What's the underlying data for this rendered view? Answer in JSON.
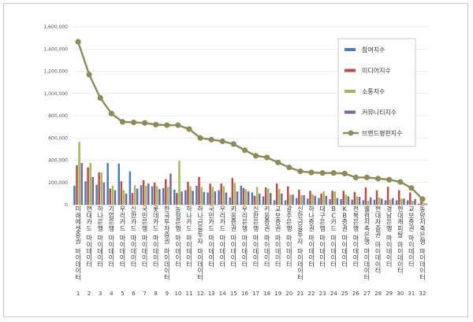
{
  "chart_data": {
    "type": "bar",
    "yticks": [
      "0",
      "200,000",
      "400,000",
      "600,000",
      "800,000",
      "1,000,000",
      "1,200,000",
      "1,400,000",
      "1,600,000"
    ],
    "ylim": [
      0,
      1600000
    ],
    "grid": true,
    "legend_position": "right",
    "categories": [
      "미래에셋증권 마이데이터",
      "현대카드 마이데이터",
      "하나은행 마이데이터",
      "기업은행 마이데이터",
      "우리카드 마이데이터",
      "신한카드 마이데이터",
      "국민은행 마이데이터",
      "롯데카드 마이데이터",
      "한국투자증권 마이데이터",
      "농협은행 마이데이터",
      "하나카드 마이데이터",
      "하나금융투자 마이데이터",
      "국민카드 마이데이터",
      "우리카드 마이데이터",
      "키움증권 마이데이터",
      "우리은행 마이데이터",
      "신한은행 마이데이터",
      "키움증권 마이데이터",
      "교보증권 마이데이터",
      "광주은행 마이데이터",
      "신한금융투자 마이데이터",
      "하나증권 마이데이터",
      "대구은행 마이데이터",
      "BC카드 마이데이터",
      "KB증권 마이데이터",
      "전북은행 마이데이터",
      "웰컴저축은행 마이데이터",
      "현대차증권 마이데이터",
      "경남은행 마이데이터",
      "현대캐피탈 마이데이터",
      "교보증권 마이데이터",
      "동양저축은행 마이데이터"
    ],
    "ranks": [
      "1",
      "2",
      "3",
      "4",
      "5",
      "6",
      "7",
      "8",
      "9",
      "10",
      "11",
      "12",
      "13",
      "14",
      "15",
      "16",
      "17",
      "18",
      "19",
      "20",
      "21",
      "22",
      "23",
      "24",
      "25",
      "26",
      "27",
      "28",
      "29",
      "30",
      "31",
      "32"
    ],
    "series": [
      {
        "name": "참여지수",
        "color": "#4a7ebb",
        "kind": "bar",
        "values": [
          170000,
          210000,
          180000,
          375000,
          370000,
          300000,
          175000,
          165000,
          150000,
          135000,
          130000,
          170000,
          110000,
          130000,
          65000,
          170000,
          110000,
          75000,
          40000,
          40000,
          60000,
          55000,
          60000,
          50000,
          50000,
          45000,
          40000,
          45000,
          40000,
          40000,
          40000,
          10000
        ]
      },
      {
        "name": "미디어지수",
        "color": "#be4b48",
        "kind": "bar",
        "values": [
          355000,
          335000,
          290000,
          145000,
          210000,
          105000,
          220000,
          200000,
          230000,
          105000,
          205000,
          250000,
          190000,
          190000,
          240000,
          150000,
          80000,
          155000,
          190000,
          165000,
          135000,
          125000,
          100000,
          125000,
          125000,
          115000,
          155000,
          130000,
          160000,
          130000,
          110000,
          30000
        ]
      },
      {
        "name": "소통지수",
        "color": "#9bbb59",
        "kind": "bar",
        "values": [
          565000,
          375000,
          290000,
          170000,
          130000,
          175000,
          170000,
          165000,
          160000,
          395000,
          165000,
          160000,
          160000,
          165000,
          195000,
          140000,
          160000,
          145000,
          140000,
          90000,
          85000,
          95000,
          120000,
          120000,
          90000,
          75000,
          35000,
          65000,
          45000,
          55000,
          35000,
          20000
        ]
      },
      {
        "name": "커뮤니티지수",
        "color": "#7e63a1",
        "kind": "bar",
        "values": [
          375000,
          250000,
          200000,
          130000,
          100000,
          145000,
          190000,
          140000,
          280000,
          120000,
          125000,
          115000,
          120000,
          110000,
          120000,
          120000,
          100000,
          105000,
          100000,
          90000,
          85000,
          80000,
          80000,
          60000,
          75000,
          70000,
          65000,
          55000,
          60000,
          55000,
          50000,
          10000
        ]
      },
      {
        "name": "브랜드평판지수",
        "color": "#8c8c5a",
        "kind": "line",
        "values": [
          1465000,
          1170000,
          960000,
          820000,
          745000,
          740000,
          735000,
          720000,
          715000,
          715000,
          680000,
          600000,
          585000,
          570000,
          545000,
          490000,
          440000,
          425000,
          380000,
          335000,
          300000,
          290000,
          285000,
          285000,
          280000,
          245000,
          245000,
          235000,
          225000,
          205000,
          150000,
          50000
        ]
      }
    ]
  }
}
